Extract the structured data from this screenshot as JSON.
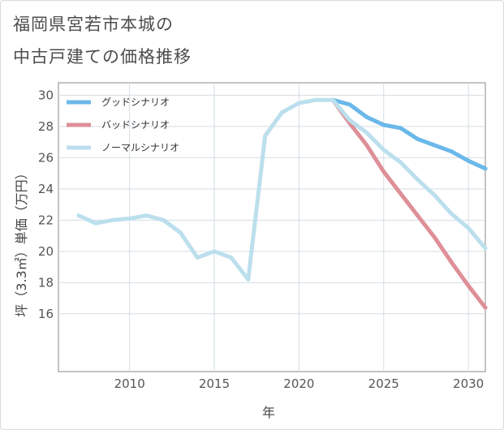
{
  "title_line1": "福岡県宮若市本城の",
  "title_line2": "中古戸建ての価格推移",
  "chart_data": {
    "type": "line",
    "xlabel": "年",
    "ylabel": "坪（3.3㎡）単価（万円）",
    "xlim": [
      2005.8,
      2031
    ],
    "ylim": [
      12.3,
      30.8
    ],
    "xticks": [
      2010,
      2015,
      2020,
      2025,
      2030
    ],
    "yticks": [
      16,
      18,
      20,
      22,
      24,
      26,
      28,
      30
    ],
    "grid": true,
    "legend_position": "top-left",
    "series": [
      {
        "name": "グッドシナリオ",
        "color": "#6bb8ea",
        "x": [
          2022,
          2023,
          2024,
          2025,
          2026,
          2027,
          2028,
          2029,
          2030,
          2031
        ],
        "values": [
          29.7,
          29.4,
          28.6,
          28.1,
          27.9,
          27.2,
          26.8,
          26.4,
          25.8,
          25.3
        ]
      },
      {
        "name": "バッドシナリオ",
        "color": "#de8f97",
        "x": [
          2022,
          2023,
          2024,
          2025,
          2026,
          2027,
          2028,
          2029,
          2030,
          2031
        ],
        "values": [
          29.7,
          28.2,
          26.8,
          25.1,
          23.7,
          22.3,
          20.9,
          19.3,
          17.8,
          16.4
        ]
      },
      {
        "name": "ノーマルシナリオ",
        "color": "#bcdfed",
        "x": [
          2007,
          2008,
          2009,
          2010,
          2011,
          2012,
          2013,
          2014,
          2015,
          2016,
          2017,
          2018,
          2019,
          2020,
          2021,
          2022,
          2023,
          2024,
          2025,
          2026,
          2027,
          2028,
          2029,
          2030,
          2031
        ],
        "values": [
          22.3,
          21.8,
          22.0,
          22.1,
          22.3,
          22.0,
          21.2,
          19.6,
          20.0,
          19.6,
          18.2,
          27.4,
          28.9,
          29.5,
          29.7,
          29.7,
          28.4,
          27.6,
          26.5,
          25.7,
          24.6,
          23.6,
          22.4,
          21.5,
          20.2
        ]
      }
    ]
  }
}
